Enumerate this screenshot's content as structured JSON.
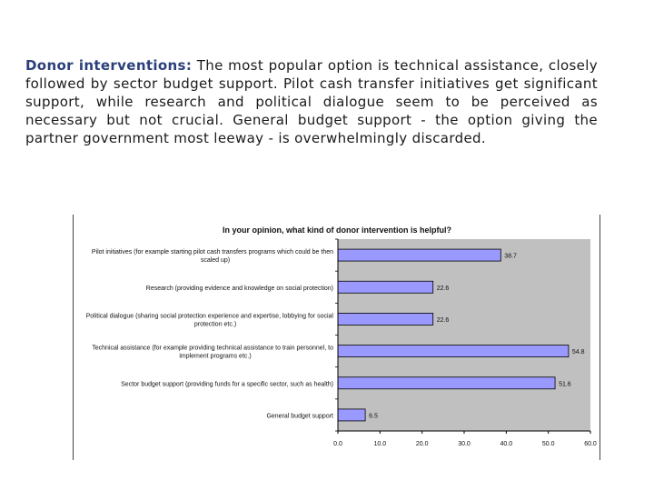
{
  "intro": {
    "lead": "Donor interventions:",
    "body": "The most popular option is technical assistance, closely followed by sector budget support. Pilot cash transfer initiatives get significant support, while research and political dialogue seem to be perceived as necessary but not crucial. General budget support - the option giving the partner government most leeway - is overwhelmingly discarded."
  },
  "chart_data": {
    "type": "bar",
    "orientation": "horizontal",
    "title": "In your opinion, what kind of donor intervention is helpful?",
    "categories": [
      [
        "Pilot initiatives (for example starting pilot cash transfers programs which could be then",
        "scaled up)"
      ],
      [
        "Research (providing evidence and knowledge on social protection)"
      ],
      [
        "Political dialogue (sharing social protection experience and expertise, lobbying for social",
        "protection etc.)"
      ],
      [
        "Technical assistance (for example providing technical assistance to train personnel, to",
        "implement programs etc.)"
      ],
      [
        "Sector budget support (providing funds for a specific sector, such as health)"
      ],
      [
        "General budget support"
      ]
    ],
    "values": [
      38.7,
      22.6,
      22.6,
      54.8,
      51.6,
      6.5
    ],
    "data_labels": [
      "38.7",
      "22.6",
      "22.6",
      "54.8",
      "51.6",
      "6.5"
    ],
    "xlim": [
      0,
      60
    ],
    "xticks": [
      "0.0",
      "10.0",
      "20.0",
      "30.0",
      "40.0",
      "50.0",
      "60.0"
    ],
    "bar_color": "#9999ff",
    "plot_background": "#c0c0c0",
    "grid": false,
    "legend": "none"
  }
}
